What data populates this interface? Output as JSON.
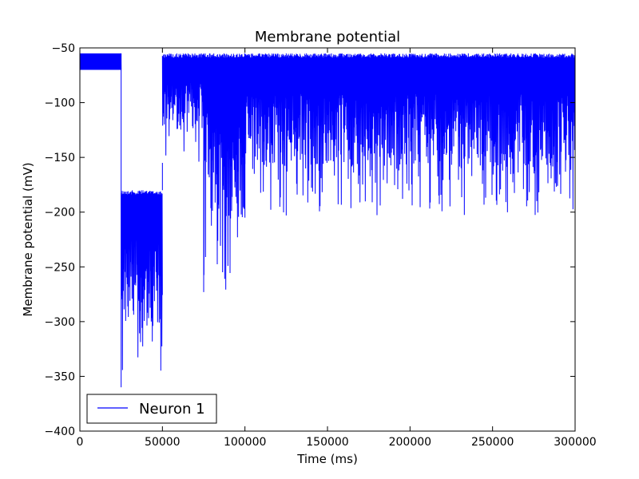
{
  "chart_data": {
    "type": "line",
    "title": "Membrane potential",
    "xlabel": "Time (ms)",
    "ylabel": "Membrane potential (mV)",
    "xlim": [
      0,
      300000
    ],
    "ylim": [
      -400,
      -50
    ],
    "xticks": [
      0,
      50000,
      100000,
      150000,
      200000,
      250000,
      300000
    ],
    "xtick_labels": [
      "0",
      "50000",
      "100000",
      "150000",
      "200000",
      "250000",
      "300000"
    ],
    "yticks": [
      -400,
      -350,
      -300,
      -250,
      -200,
      -150,
      -100,
      -50
    ],
    "ytick_labels": [
      "−400",
      "−350",
      "−300",
      "−250",
      "−200",
      "−150",
      "−100",
      "−50"
    ],
    "grid": false,
    "legend": {
      "position": "lower-left",
      "entries": [
        "Neuron 1"
      ]
    },
    "series": [
      {
        "name": "Neuron 1",
        "color": "#0000ff",
        "segments": [
          {
            "x_start": 0,
            "x_end": 25000,
            "y_max": -55,
            "y_min": -70
          },
          {
            "x_start": 25000,
            "x_end": 50000,
            "y_max": -180,
            "y_min": -360
          },
          {
            "x_start": 50000,
            "x_end": 75000,
            "y_max": -55,
            "y_min": -155
          },
          {
            "x_start": 75000,
            "x_end": 100000,
            "y_max": -55,
            "y_min": -273
          },
          {
            "x_start": 100000,
            "x_end": 125000,
            "y_max": -55,
            "y_min": -205
          },
          {
            "x_start": 125000,
            "x_end": 300000,
            "y_max": -55,
            "y_min": -203
          }
        ]
      }
    ]
  }
}
